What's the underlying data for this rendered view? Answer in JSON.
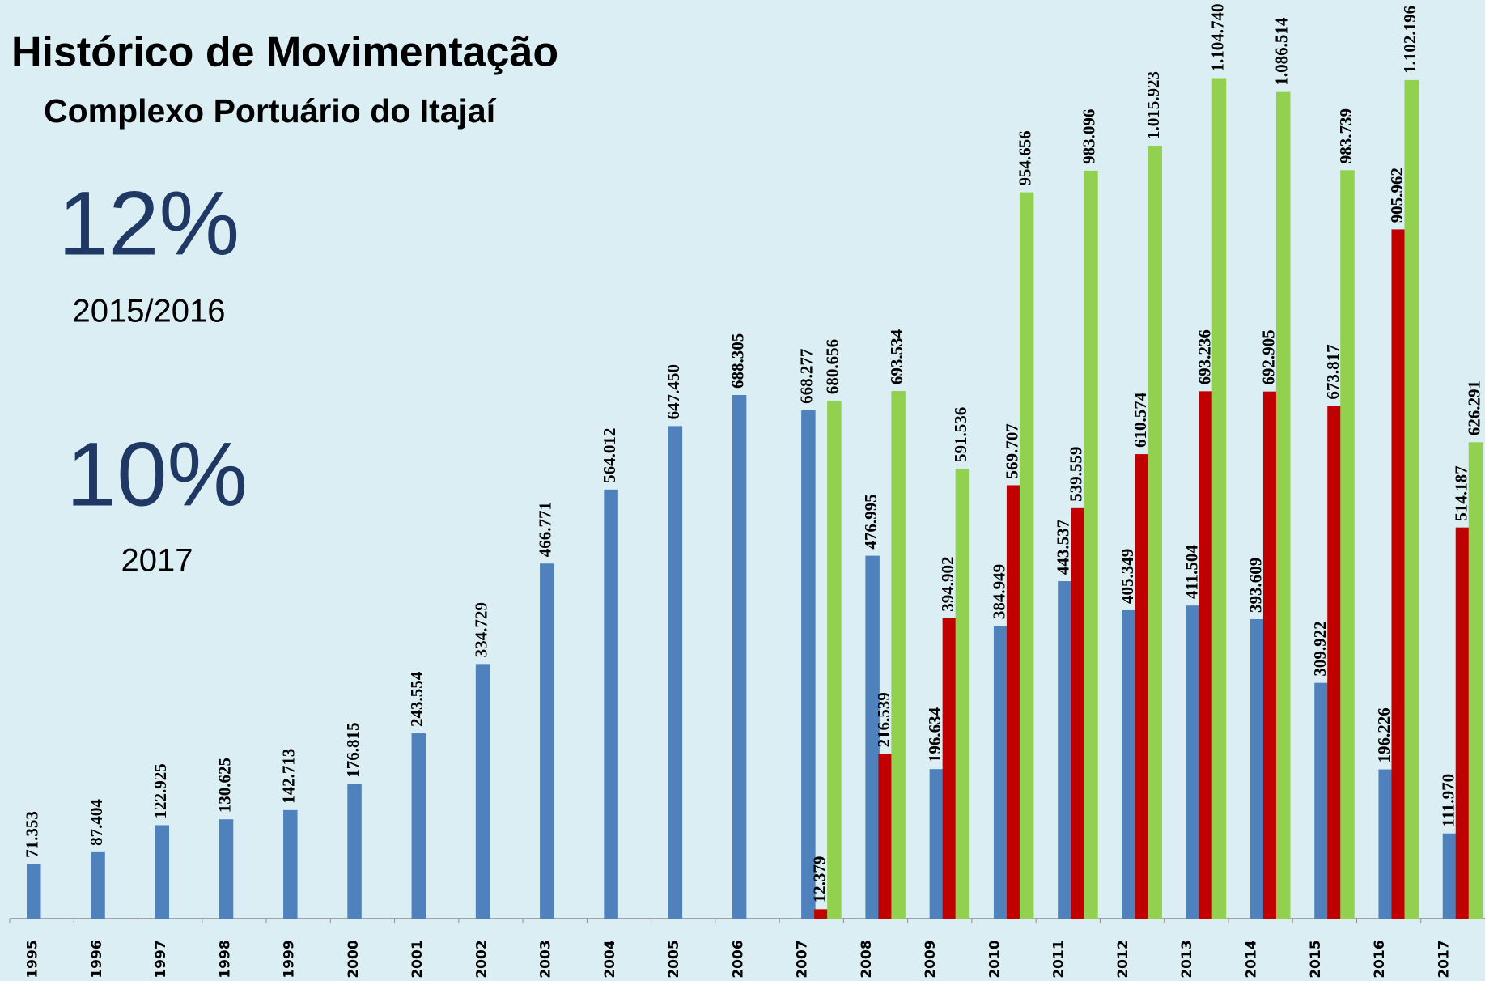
{
  "chart_data": {
    "type": "bar",
    "title": "Histórico de Movimentação",
    "subtitle": "Complexo Portuário do Itajaí",
    "annotations": [
      "12%",
      "2015/2016",
      "10%",
      "2017"
    ],
    "categories": [
      "1995",
      "1996",
      "1997",
      "1998",
      "1999",
      "2000",
      "2001",
      "2002",
      "2003",
      "2004",
      "2005",
      "2006",
      "2007",
      "2008",
      "2009",
      "2010",
      "2011",
      "2012",
      "2013",
      "2014",
      "2015",
      "2016",
      "2017"
    ],
    "series": [
      {
        "color": "#4f81bd",
        "values": [
          71353,
          87404,
          122925,
          130625,
          142713,
          176815,
          243554,
          334729,
          466771,
          564012,
          647450,
          688305,
          668277,
          476995,
          196634,
          384949,
          443537,
          405349,
          411504,
          393609,
          309922,
          196226,
          111970
        ],
        "value_labels": [
          "71.353",
          "87.404",
          "122.925",
          "130.625",
          "142.713",
          "176.815",
          "243.554",
          "334.729",
          "466.771",
          "564.012",
          "647.450",
          "688.305",
          "668.277",
          "476.995",
          "196.634",
          "384.949",
          "443.537",
          "405.349",
          "411.504",
          "393.609",
          "309.922",
          "196.226",
          "111.970"
        ]
      },
      {
        "color": "#c00000",
        "values": [
          null,
          null,
          null,
          null,
          null,
          null,
          null,
          null,
          null,
          null,
          null,
          null,
          12379,
          216539,
          394902,
          569707,
          539559,
          610574,
          693236,
          692905,
          673817,
          905962,
          514187
        ],
        "value_labels": [
          null,
          null,
          null,
          null,
          null,
          null,
          null,
          null,
          null,
          null,
          null,
          null,
          "12.379",
          "216.539",
          "394.902",
          "569.707",
          "539.559",
          "610.574",
          "693.236",
          "692.905",
          "673.817",
          "905.962",
          "514.187"
        ]
      },
      {
        "color": "#92d050",
        "values": [
          null,
          null,
          null,
          null,
          null,
          null,
          null,
          null,
          null,
          null,
          null,
          null,
          680656,
          693534,
          591536,
          954656,
          983096,
          1015923,
          1104740,
          1086514,
          983739,
          1102196,
          626291
        ],
        "value_labels": [
          null,
          null,
          null,
          null,
          null,
          null,
          null,
          null,
          null,
          null,
          null,
          null,
          "680.656",
          "693.534",
          "591.536",
          "954.656",
          "983.096",
          "1.015.923",
          "1.104.740",
          "1.086.514",
          "983.739",
          "1.102.196",
          "626.291"
        ]
      }
    ],
    "ylim": [
      0,
      1200000
    ]
  }
}
